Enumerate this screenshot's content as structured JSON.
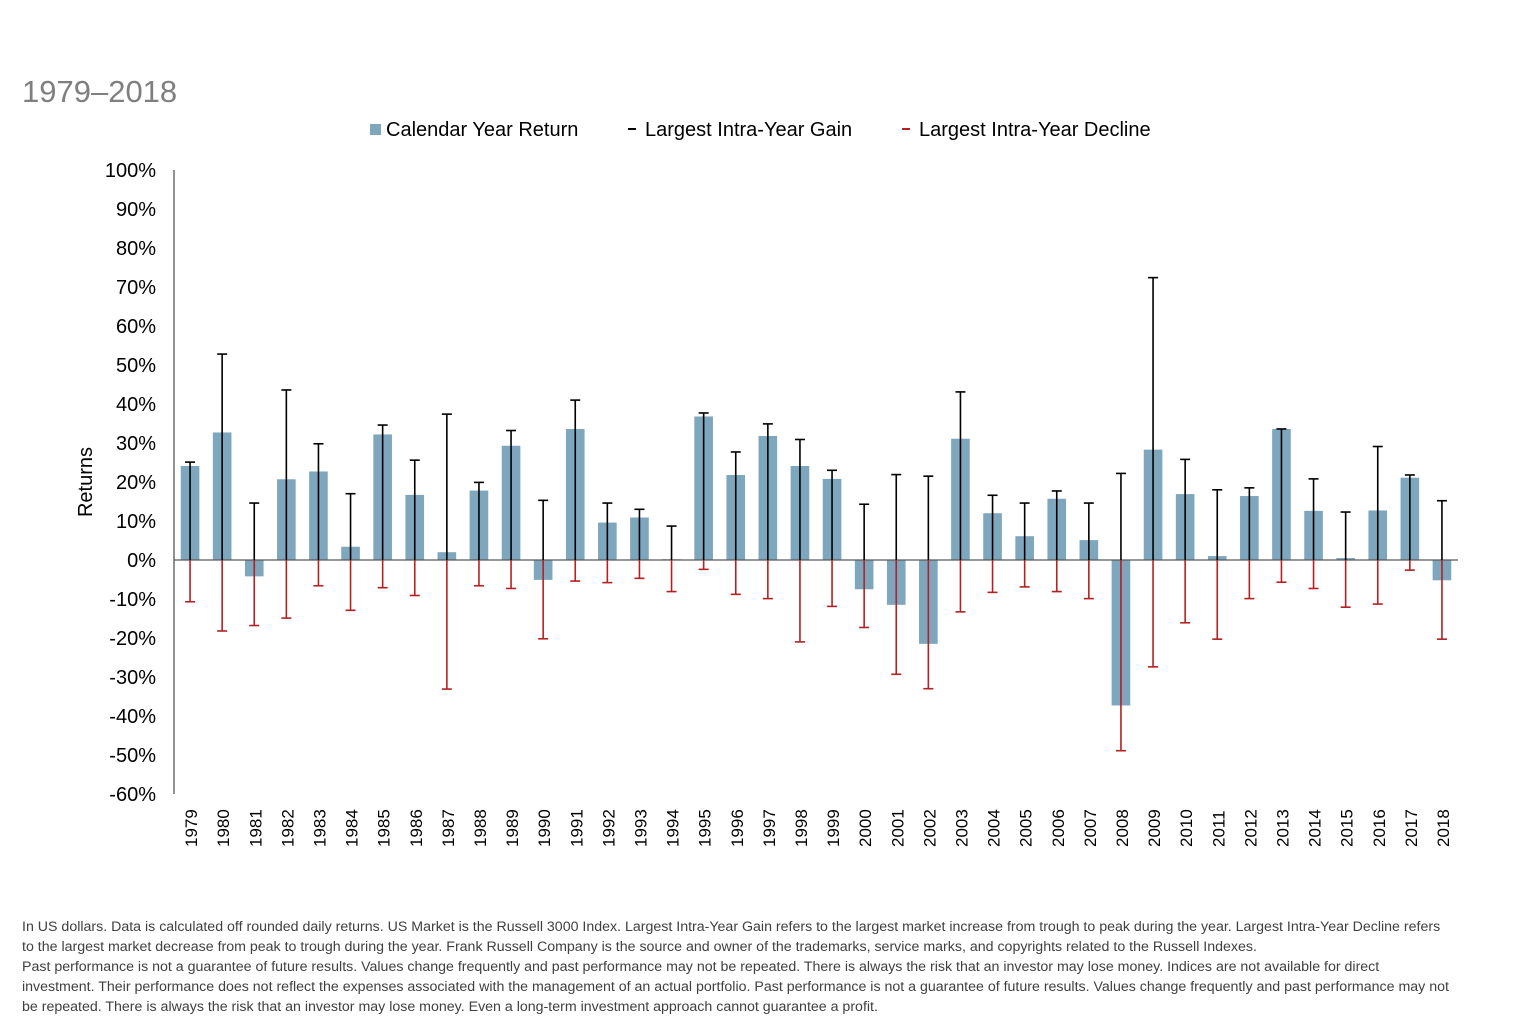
{
  "subtitle": "1979–2018",
  "legend": {
    "return_label": "Calendar Year Return",
    "gain_label": "Largest Intra-Year Gain",
    "decline_label": "Largest Intra-Year Decline"
  },
  "colors": {
    "bar": "#7ea6bd",
    "gain": "#000000",
    "decline": "#b22222",
    "axis": "#595959"
  },
  "chart_data": {
    "type": "bar",
    "ylabel": "Returns",
    "xlabel": "",
    "ylim": [
      -60,
      100
    ],
    "y_ticks": [
      -60,
      -50,
      -40,
      -30,
      -20,
      -10,
      0,
      10,
      20,
      30,
      40,
      50,
      60,
      70,
      80,
      90,
      100
    ],
    "y_tick_format": "percent",
    "grid": false,
    "legend_position": "top",
    "categories": [
      "1979",
      "1980",
      "1981",
      "1982",
      "1983",
      "1984",
      "1985",
      "1986",
      "1987",
      "1988",
      "1989",
      "1990",
      "1991",
      "1992",
      "1993",
      "1994",
      "1995",
      "1996",
      "1997",
      "1998",
      "1999",
      "2000",
      "2001",
      "2002",
      "2003",
      "2004",
      "2005",
      "2006",
      "2007",
      "2008",
      "2009",
      "2010",
      "2011",
      "2012",
      "2013",
      "2014",
      "2015",
      "2016",
      "2017",
      "2018"
    ],
    "series": [
      {
        "name": "Calendar Year Return",
        "type": "bar",
        "values": [
          24.1,
          32.7,
          -4.2,
          20.7,
          22.7,
          3.4,
          32.2,
          16.7,
          2.0,
          17.8,
          29.3,
          -5.1,
          33.6,
          9.6,
          10.9,
          0.2,
          36.8,
          21.8,
          31.8,
          24.1,
          20.8,
          -7.5,
          -11.5,
          -21.5,
          31.1,
          12.0,
          6.1,
          15.7,
          5.1,
          -37.3,
          28.3,
          16.9,
          1.0,
          16.4,
          33.6,
          12.6,
          0.5,
          12.7,
          21.1,
          -5.2
        ]
      },
      {
        "name": "Largest Intra-Year Gain",
        "type": "errorbar_up",
        "values": [
          25.1,
          52.8,
          14.6,
          43.6,
          29.8,
          17.0,
          34.6,
          25.6,
          37.4,
          19.9,
          33.2,
          15.3,
          41.0,
          14.6,
          13.0,
          8.7,
          37.7,
          27.7,
          34.9,
          30.9,
          23.0,
          14.3,
          21.9,
          21.5,
          43.1,
          16.6,
          14.6,
          17.7,
          14.6,
          22.2,
          72.4,
          25.8,
          18.0,
          18.5,
          33.6,
          20.8,
          12.3,
          29.1,
          21.8,
          15.2
        ]
      },
      {
        "name": "Largest Intra-Year Decline",
        "type": "errorbar_down",
        "values": [
          -10.7,
          -18.2,
          -16.8,
          -14.9,
          -6.6,
          -12.9,
          -7.1,
          -9.1,
          -33.1,
          -6.6,
          -7.3,
          -20.2,
          -5.4,
          -5.8,
          -4.7,
          -8.1,
          -2.4,
          -8.8,
          -9.9,
          -21.0,
          -11.9,
          -17.3,
          -29.3,
          -33.0,
          -13.3,
          -8.3,
          -6.9,
          -8.1,
          -9.9,
          -48.9,
          -27.4,
          -16.1,
          -20.3,
          -9.9,
          -5.7,
          -7.3,
          -12.1,
          -11.3,
          -2.6,
          -20.3
        ]
      }
    ]
  },
  "footnote": {
    "para1": "In US dollars. Data is calculated off rounded daily returns. US Market is the Russell 3000 Index. Largest Intra-Year Gain refers to the largest market increase from trough to peak during the year. Largest Intra-Year Decline refers to the largest market decrease from peak to trough during the year. Frank Russell Company is the source and owner of the trademarks, service marks, and copyrights related to the Russell Indexes.",
    "para2": "Past performance is not a guarantee of future results. Values change frequently and past performance may not be repeated. There is always the risk that an investor may lose money. Indices are not available for direct investment. Their performance does not reflect the expenses associated with the management of an actual portfolio. Past performance is not a guarantee of future results. Values change frequently and past performance may not be repeated. There is always the risk that an investor may lose money. Even a long-term investment approach cannot guarantee a profit."
  }
}
